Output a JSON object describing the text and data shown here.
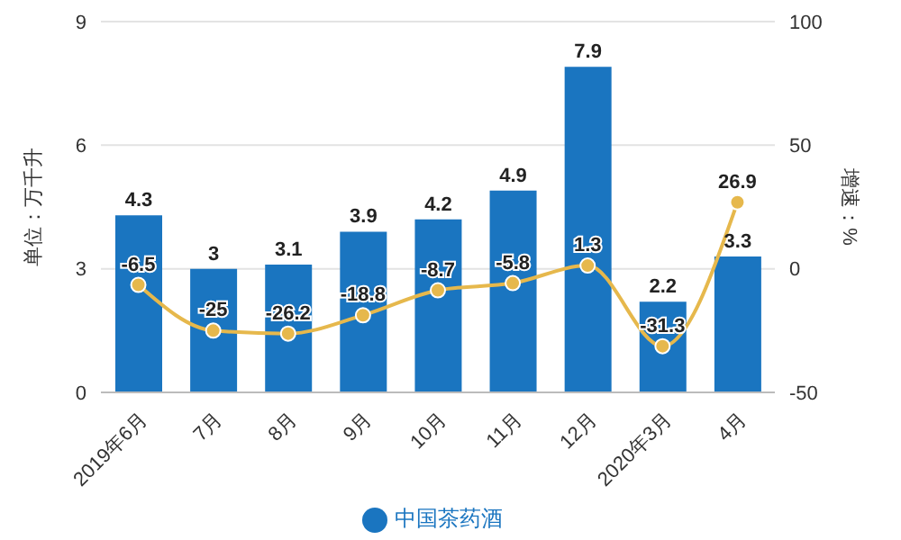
{
  "chart_data": {
    "type": "bar",
    "ylabel": "单位：万千升",
    "y2label": "增速：%",
    "categories": [
      "2019年6月",
      "7月",
      "8月",
      "9月",
      "10月",
      "11月",
      "12月",
      "2020年3月",
      "4月"
    ],
    "series": [
      {
        "name": "中国茶药酒",
        "color": "#1a75c0",
        "values": [
          4.3,
          3,
          3.1,
          3.9,
          4.2,
          4.9,
          7.9,
          2.2,
          3.3
        ]
      },
      {
        "type": "line",
        "axis": "y2",
        "color": "#e6b84c",
        "marker": "circle",
        "values": [
          -6.5,
          -25,
          -26.2,
          -18.8,
          -8.7,
          -5.8,
          1.3,
          -31.3,
          26.9
        ]
      }
    ],
    "ylim": [
      0,
      9
    ],
    "yticks": [
      0,
      3,
      6,
      9
    ],
    "y2lim": [
      -50,
      100
    ],
    "y2ticks": [
      -50,
      0,
      50,
      100
    ],
    "data_labels": true,
    "grid": "y",
    "legend": "bottom"
  }
}
